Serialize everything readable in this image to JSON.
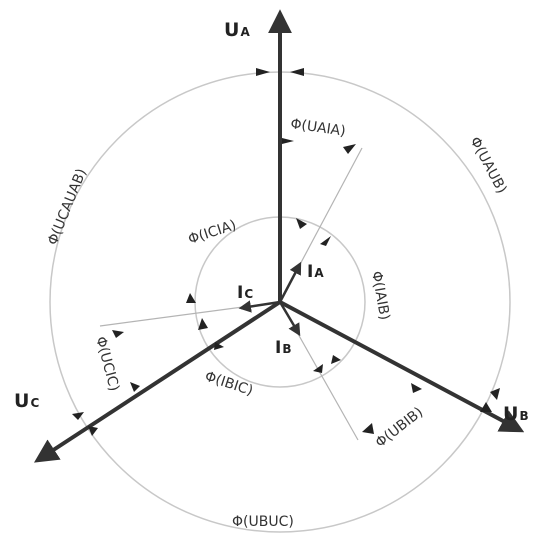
{
  "diagram": {
    "voltages": {
      "ua": {
        "main": "U",
        "sub": "A"
      },
      "ub": {
        "main": "U",
        "sub": "B"
      },
      "uc": {
        "main": "U",
        "sub": "C"
      }
    },
    "currents": {
      "ia": {
        "main": "I",
        "sub": "A"
      },
      "ib": {
        "main": "I",
        "sub": "B"
      },
      "ic": {
        "main": "I",
        "sub": "C"
      }
    },
    "angles": {
      "ua_ia": "Φ(UAIA)",
      "ua_ub": "Φ(UAUB)",
      "uca_uab": "Φ(UCAUAB)",
      "ic_ia": "Φ(ICIA)",
      "ia_ib": "Φ(IAIB)",
      "uc_ic": "Φ(UCIC)",
      "ib_ic": "Φ(IBIC)",
      "ub_ib": "Φ(UBIB)",
      "ub_uc": "Φ(UBUC)"
    },
    "colors": {
      "vector": "#333333",
      "circle": "#c8c8c8",
      "guide": "#b4b4b4"
    }
  }
}
